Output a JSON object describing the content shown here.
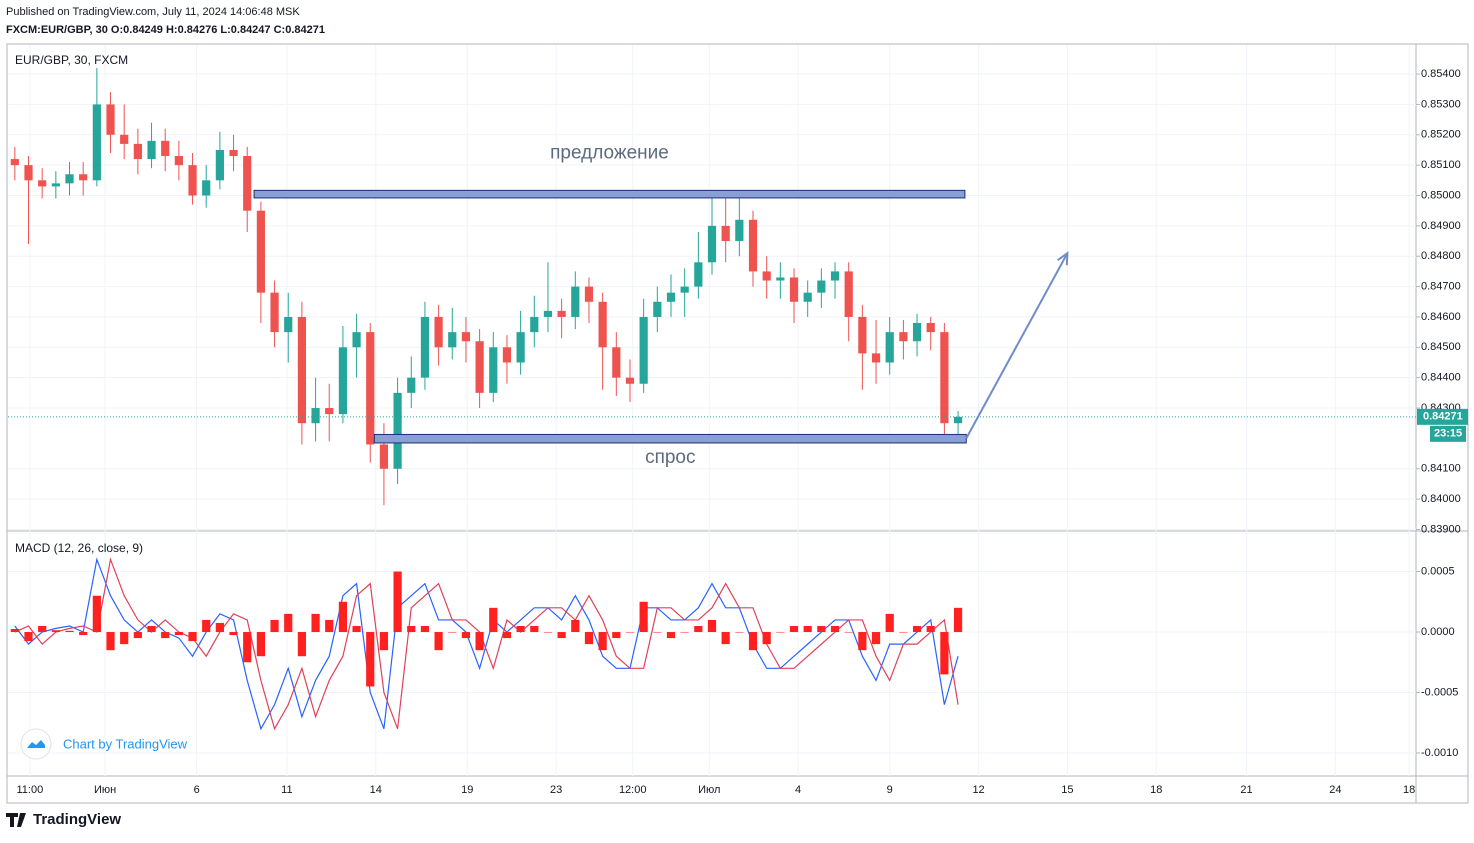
{
  "header": {
    "published": "Published on TradingView.com, July 11, 2024 14:06:48 MSK",
    "symbol_line": "FXCM:EUR/GBP, 30 O:0.84249 H:0.84276 L:0.84247 C:0.84271"
  },
  "footer": {
    "brand": "TradingView",
    "watermark": "Chart by TradingView"
  },
  "chart_data": [
    {
      "type": "candlestick",
      "title": "EUR/GBP, 30, FXCM",
      "up_color": "#26a69a",
      "down_color": "#ef5350",
      "xlim": [
        -0.5,
        102.5
      ],
      "xticks": [
        {
          "value": 1.1,
          "label": "11:00"
        },
        {
          "value": 6.6,
          "label": "Июн"
        },
        {
          "value": 13.3,
          "label": "6"
        },
        {
          "value": 19.9,
          "label": "11"
        },
        {
          "value": 26.4,
          "label": "14"
        },
        {
          "value": 33.1,
          "label": "19"
        },
        {
          "value": 39.6,
          "label": "23"
        },
        {
          "value": 45.2,
          "label": "12:00"
        },
        {
          "value": 50.8,
          "label": "Июл"
        },
        {
          "value": 57.3,
          "label": "4"
        },
        {
          "value": 64.0,
          "label": "9"
        },
        {
          "value": 70.5,
          "label": "12"
        },
        {
          "value": 77.0,
          "label": "15"
        },
        {
          "value": 83.5,
          "label": "18"
        },
        {
          "value": 90.1,
          "label": "21"
        },
        {
          "value": 96.6,
          "label": "24"
        },
        {
          "value": 102.0,
          "label": "18"
        }
      ],
      "ylim": [
        0.83895,
        0.85499
      ],
      "yticks": [
        {
          "value": 0.839,
          "label": "0.83900"
        },
        {
          "value": 0.84,
          "label": "0.84000"
        },
        {
          "value": 0.841,
          "label": "0.84100"
        },
        {
          "value": 0.843,
          "label": "0.84300"
        },
        {
          "value": 0.844,
          "label": "0.84400"
        },
        {
          "value": 0.845,
          "label": "0.84500"
        },
        {
          "value": 0.846,
          "label": "0.84600"
        },
        {
          "value": 0.847,
          "label": "0.84700"
        },
        {
          "value": 0.848,
          "label": "0.84800"
        },
        {
          "value": 0.849,
          "label": "0.84900"
        },
        {
          "value": 0.85,
          "label": "0.85000"
        },
        {
          "value": 0.851,
          "label": "0.85100"
        },
        {
          "value": 0.852,
          "label": "0.85200"
        },
        {
          "value": 0.853,
          "label": "0.85300"
        },
        {
          "value": 0.854,
          "label": "0.85400"
        }
      ],
      "grid": true,
      "candles": [
        [
          0.8512,
          0.8516,
          0.8505,
          0.851
        ],
        [
          0.851,
          0.8513,
          0.8484,
          0.8505
        ],
        [
          0.8505,
          0.8509,
          0.8499,
          0.8503
        ],
        [
          0.8503,
          0.8508,
          0.8499,
          0.8504
        ],
        [
          0.8504,
          0.8511,
          0.85,
          0.8507
        ],
        [
          0.8507,
          0.8511,
          0.85,
          0.8505
        ],
        [
          0.8505,
          0.8542,
          0.8503,
          0.853
        ],
        [
          0.853,
          0.8534,
          0.8514,
          0.852
        ],
        [
          0.852,
          0.853,
          0.8512,
          0.8517
        ],
        [
          0.8517,
          0.8522,
          0.8507,
          0.8512
        ],
        [
          0.8512,
          0.8524,
          0.8509,
          0.8518
        ],
        [
          0.8518,
          0.8522,
          0.8508,
          0.8513
        ],
        [
          0.8513,
          0.8518,
          0.8505,
          0.851
        ],
        [
          0.851,
          0.8514,
          0.8497,
          0.85
        ],
        [
          0.85,
          0.851,
          0.8496,
          0.8505
        ],
        [
          0.8505,
          0.8521,
          0.8502,
          0.8515
        ],
        [
          0.8515,
          0.852,
          0.8508,
          0.8513
        ],
        [
          0.8513,
          0.8516,
          0.8488,
          0.8495
        ],
        [
          0.8495,
          0.8498,
          0.8458,
          0.8468
        ],
        [
          0.8468,
          0.8472,
          0.845,
          0.8455
        ],
        [
          0.8455,
          0.8468,
          0.8445,
          0.846
        ],
        [
          0.846,
          0.8465,
          0.8418,
          0.8425
        ],
        [
          0.8425,
          0.844,
          0.8419,
          0.843
        ],
        [
          0.843,
          0.8438,
          0.8419,
          0.8428
        ],
        [
          0.8428,
          0.8457,
          0.8425,
          0.845
        ],
        [
          0.845,
          0.8461,
          0.844,
          0.8455
        ],
        [
          0.8455,
          0.8458,
          0.8412,
          0.8418
        ],
        [
          0.8418,
          0.8425,
          0.8398,
          0.841
        ],
        [
          0.841,
          0.844,
          0.8405,
          0.8435
        ],
        [
          0.8435,
          0.8447,
          0.843,
          0.844
        ],
        [
          0.844,
          0.8465,
          0.8436,
          0.846
        ],
        [
          0.846,
          0.8464,
          0.8444,
          0.845
        ],
        [
          0.845,
          0.8463,
          0.8446,
          0.8455
        ],
        [
          0.8455,
          0.846,
          0.8445,
          0.8452
        ],
        [
          0.8452,
          0.8456,
          0.843,
          0.8435
        ],
        [
          0.8435,
          0.8455,
          0.8432,
          0.845
        ],
        [
          0.845,
          0.8454,
          0.8438,
          0.8445
        ],
        [
          0.8445,
          0.8462,
          0.8441,
          0.8455
        ],
        [
          0.8455,
          0.8467,
          0.845,
          0.846
        ],
        [
          0.846,
          0.8478,
          0.8455,
          0.8462
        ],
        [
          0.8462,
          0.8466,
          0.8453,
          0.846
        ],
        [
          0.846,
          0.8475,
          0.8456,
          0.847
        ],
        [
          0.847,
          0.8473,
          0.8458,
          0.8465
        ],
        [
          0.8465,
          0.8468,
          0.8436,
          0.845
        ],
        [
          0.845,
          0.8455,
          0.8434,
          0.844
        ],
        [
          0.844,
          0.8446,
          0.8432,
          0.8438
        ],
        [
          0.8438,
          0.8466,
          0.8435,
          0.846
        ],
        [
          0.846,
          0.847,
          0.8455,
          0.8465
        ],
        [
          0.8465,
          0.8474,
          0.846,
          0.8468
        ],
        [
          0.8468,
          0.8476,
          0.846,
          0.847
        ],
        [
          0.847,
          0.8488,
          0.8466,
          0.8478
        ],
        [
          0.8478,
          0.85,
          0.8474,
          0.849
        ],
        [
          0.849,
          0.8499,
          0.8478,
          0.8485
        ],
        [
          0.8485,
          0.8499,
          0.848,
          0.8492
        ],
        [
          0.8492,
          0.8495,
          0.847,
          0.8475
        ],
        [
          0.8475,
          0.848,
          0.8466,
          0.8472
        ],
        [
          0.8472,
          0.8478,
          0.8466,
          0.8473
        ],
        [
          0.8473,
          0.8476,
          0.8458,
          0.8465
        ],
        [
          0.8465,
          0.8472,
          0.846,
          0.8468
        ],
        [
          0.8468,
          0.8476,
          0.8463,
          0.8472
        ],
        [
          0.8472,
          0.8478,
          0.8466,
          0.8475
        ],
        [
          0.8475,
          0.8478,
          0.8452,
          0.846
        ],
        [
          0.846,
          0.8464,
          0.8436,
          0.8448
        ],
        [
          0.8448,
          0.8459,
          0.8438,
          0.8445
        ],
        [
          0.8445,
          0.846,
          0.8441,
          0.8455
        ],
        [
          0.8455,
          0.8459,
          0.8446,
          0.8452
        ],
        [
          0.8452,
          0.8461,
          0.8447,
          0.8458
        ],
        [
          0.8458,
          0.846,
          0.8449,
          0.8455
        ],
        [
          0.8455,
          0.8458,
          0.842,
          0.8425
        ],
        [
          0.8425,
          0.8429,
          0.84195,
          0.84271
        ]
      ],
      "last_price": {
        "value": 0.84271,
        "label": "0.84271"
      },
      "timer": "23:15",
      "zones": [
        {
          "label": "предложение",
          "top": 0.85017,
          "bottom": 0.84992,
          "start": 17.5,
          "end": 69.5,
          "label_side": "above"
        },
        {
          "label": "спрос",
          "top": 0.84213,
          "bottom": 0.84185,
          "start": 26.3,
          "end": 69.6,
          "label_side": "below"
        }
      ],
      "arrow": {
        "x": [
          69.6,
          77.0
        ],
        "y": [
          0.842,
          0.8481
        ],
        "color": "#6f8cc8"
      }
    },
    {
      "type": "macd",
      "title": "MACD (12, 26, close, 9)",
      "ylim": [
        -0.00119,
        0.000835
      ],
      "yticks": [
        {
          "value": -0.001,
          "label": "-0.0010"
        },
        {
          "value": -0.0005,
          "label": "-0.0005"
        },
        {
          "value": 0,
          "label": "0.0000"
        },
        {
          "value": 0.0005,
          "label": "0.0005"
        }
      ],
      "series": [
        {
          "name": "MACD",
          "kind": "line",
          "color": "#2962ff",
          "values": [
            5e-05,
            -0.0001,
            0,
            3e-05,
            5e-05,
            0,
            0.0006,
            0.0003,
            0.0001,
            0,
            0.0001,
            0,
            -5e-05,
            -0.0002,
            0,
            0.00015,
            0.0001,
            -0.0004,
            -0.0008,
            -0.0006,
            -0.0003,
            -0.0007,
            -0.0004,
            -0.0002,
            0.0003,
            0.0004,
            -0.0005,
            -0.0008,
            0.0002,
            0.0003,
            0.0004,
            0.0001,
            0.0001,
            0,
            -0.0003,
            0.0001,
            0,
            0.0001,
            0.0002,
            0.0002,
            0.0001,
            0.0003,
            0.0001,
            -0.0002,
            -0.0003,
            -0.0003,
            0.0002,
            0.0002,
            0.0001,
            0.0001,
            0.0002,
            0.0004,
            0.0002,
            0.0002,
            -0.0001,
            -0.0003,
            -0.0003,
            -0.0002,
            -0.0001,
            0,
            0.0001,
            0.0001,
            -0.0002,
            -0.0004,
            -0.0001,
            -0.0001,
            0,
            0.0001,
            -0.0006,
            -0.0002
          ]
        },
        {
          "name": "Signal",
          "kind": "line",
          "color": "#e0405a",
          "values": [
            0,
            5e-05,
            -0.0001,
            0,
            3e-05,
            5e-05,
            0,
            0.0006,
            0.0003,
            0.0001,
            0,
            0.0001,
            0,
            -5e-05,
            -0.0002,
            0,
            0.00015,
            0.0001,
            -0.0004,
            -0.0008,
            -0.0006,
            -0.0003,
            -0.0007,
            -0.0004,
            -0.0002,
            0.0003,
            0.0004,
            -0.0005,
            -0.0008,
            0.0002,
            0.0003,
            0.0004,
            0.0001,
            0.0001,
            0,
            -0.0003,
            0.0001,
            0,
            0.0001,
            0.0002,
            0.0002,
            0.0001,
            0.0003,
            0.0001,
            -0.0002,
            -0.0003,
            -0.0003,
            0.0002,
            0.0002,
            0.0001,
            0.0001,
            0.0002,
            0.0004,
            0.0002,
            0.0002,
            -0.0001,
            -0.0003,
            -0.0003,
            -0.0002,
            -0.0001,
            0,
            0.0001,
            0.0001,
            -0.0002,
            -0.0004,
            -0.0001,
            -0.0001,
            0,
            0.0001,
            -0.0006
          ]
        },
        {
          "name": "Histogram",
          "kind": "histogram",
          "color": "#ff2020",
          "values": [
            2.5e-05,
            -7.5e-05,
            5e-05,
            1.5e-05,
            1e-05,
            -2.5e-05,
            0.0003,
            -0.00015,
            -0.0001,
            -5e-05,
            5e-05,
            -5e-05,
            -2.5e-05,
            -7.5e-05,
            0.0001,
            7.5e-05,
            -2.5e-05,
            -0.00025,
            -0.0002,
            0.0001,
            0.00015,
            -0.0002,
            0.00015,
            0.0001,
            0.00025,
            5e-05,
            -0.00045,
            -0.00015,
            0.0005,
            5e-05,
            5e-05,
            -0.00015,
            0,
            -5e-05,
            -0.00015,
            0.0002,
            -5e-05,
            5e-05,
            5e-05,
            0,
            -5e-05,
            0.0001,
            -0.0001,
            -0.00015,
            -5e-05,
            0,
            0.00025,
            0,
            -5e-05,
            0,
            5e-05,
            0.0001,
            -0.0001,
            0,
            -0.00015,
            -0.0001,
            0,
            5e-05,
            5e-05,
            5e-05,
            5e-05,
            0,
            -0.00015,
            -0.0001,
            0.00015,
            0,
            5e-05,
            5e-05,
            -0.00035,
            0.0002
          ]
        }
      ]
    }
  ]
}
